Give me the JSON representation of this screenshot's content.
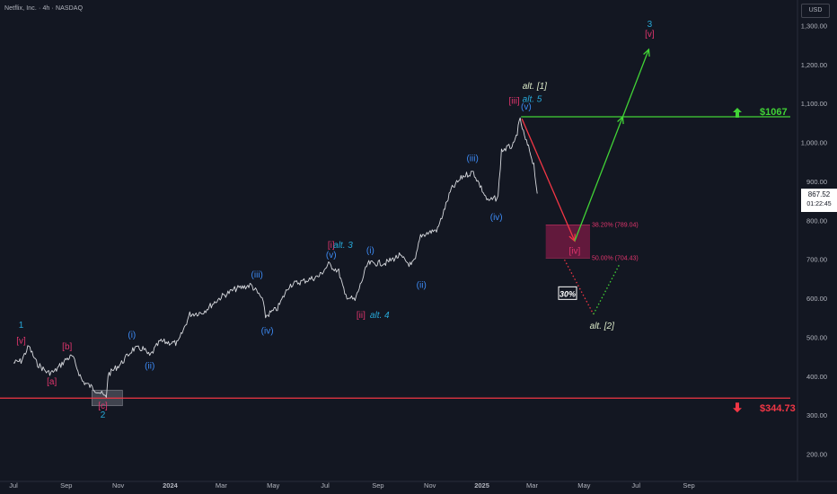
{
  "header": {
    "title": "Netflix, Inc. · 4h · NASDAQ",
    "currency": "USD"
  },
  "last_price": {
    "value": "867.52",
    "countdown": "01:22:45"
  },
  "colors": {
    "background": "#131722",
    "price": "#d7d9de",
    "green": "#41d336",
    "red": "#f23645",
    "magenta": "#e0356d",
    "blue": "#3d8bf5",
    "cyan": "#27a8d8",
    "light": "#dbe9c8",
    "zone": "#7e1b45"
  },
  "chart_data": {
    "type": "line",
    "title": "",
    "xlabel": "",
    "ylabel": "",
    "ylim": [
      190,
      1340
    ],
    "x_ticks": [
      "Jul",
      "Sep",
      "Nov",
      "2024",
      "Mar",
      "May",
      "Jul",
      "Sep",
      "Nov",
      "2025",
      "Mar",
      "May",
      "Jul",
      "Sep"
    ],
    "y_ticks": [
      "1,300.00",
      "1,200.00",
      "1,100.00",
      "1,000.00",
      "900.00",
      "800.00",
      "700.00",
      "600.00",
      "500.00",
      "400.00",
      "300.00",
      "200.00"
    ],
    "y_tick_values": [
      1300,
      1200,
      1100,
      1000,
      900,
      800,
      700,
      600,
      500,
      400,
      300,
      200
    ],
    "price_series": [
      {
        "x": "2023-07-01",
        "y": 435
      },
      {
        "x": "2023-07-10",
        "y": 440
      },
      {
        "x": "2023-07-19",
        "y": 478
      },
      {
        "x": "2023-07-28",
        "y": 435
      },
      {
        "x": "2023-08-10",
        "y": 410
      },
      {
        "x": "2023-08-18",
        "y": 412
      },
      {
        "x": "2023-09-01",
        "y": 445
      },
      {
        "x": "2023-09-08",
        "y": 452
      },
      {
        "x": "2023-09-20",
        "y": 388
      },
      {
        "x": "2023-10-10",
        "y": 360
      },
      {
        "x": "2023-10-18",
        "y": 345
      },
      {
        "x": "2023-10-20",
        "y": 405
      },
      {
        "x": "2023-11-05",
        "y": 435
      },
      {
        "x": "2023-11-18",
        "y": 470
      },
      {
        "x": "2023-11-30",
        "y": 472
      },
      {
        "x": "2023-12-08",
        "y": 452
      },
      {
        "x": "2023-12-20",
        "y": 490
      },
      {
        "x": "2024-01-10",
        "y": 485
      },
      {
        "x": "2024-01-24",
        "y": 560
      },
      {
        "x": "2024-02-08",
        "y": 565
      },
      {
        "x": "2024-03-01",
        "y": 605
      },
      {
        "x": "2024-03-18",
        "y": 625
      },
      {
        "x": "2024-04-05",
        "y": 635
      },
      {
        "x": "2024-04-18",
        "y": 600
      },
      {
        "x": "2024-04-22",
        "y": 555
      },
      {
        "x": "2024-05-06",
        "y": 575
      },
      {
        "x": "2024-05-20",
        "y": 635
      },
      {
        "x": "2024-06-10",
        "y": 648
      },
      {
        "x": "2024-06-24",
        "y": 658
      },
      {
        "x": "2024-07-05",
        "y": 688
      },
      {
        "x": "2024-07-17",
        "y": 670
      },
      {
        "x": "2024-07-24",
        "y": 610
      },
      {
        "x": "2024-08-05",
        "y": 595
      },
      {
        "x": "2024-08-20",
        "y": 690
      },
      {
        "x": "2024-09-10",
        "y": 692
      },
      {
        "x": "2024-09-26",
        "y": 710
      },
      {
        "x": "2024-10-10",
        "y": 685
      },
      {
        "x": "2024-10-15",
        "y": 700
      },
      {
        "x": "2024-10-21",
        "y": 762
      },
      {
        "x": "2024-11-10",
        "y": 778
      },
      {
        "x": "2024-11-26",
        "y": 880
      },
      {
        "x": "2024-12-10",
        "y": 915
      },
      {
        "x": "2024-12-22",
        "y": 925
      },
      {
        "x": "2025-01-08",
        "y": 850
      },
      {
        "x": "2025-01-20",
        "y": 860
      },
      {
        "x": "2025-01-24",
        "y": 980
      },
      {
        "x": "2025-02-08",
        "y": 995
      },
      {
        "x": "2025-02-15",
        "y": 1060
      },
      {
        "x": "2025-02-20",
        "y": 1015
      },
      {
        "x": "2025-02-26",
        "y": 980
      },
      {
        "x": "2025-03-03",
        "y": 945
      },
      {
        "x": "2025-03-07",
        "y": 870
      }
    ],
    "levels": [
      {
        "label": "$1067",
        "value": 1067,
        "color": "#41d336",
        "arrow": "up"
      },
      {
        "label": "$344.73",
        "value": 344.73,
        "color": "#f23645",
        "arrow": "down"
      }
    ],
    "fib_zone": {
      "top": 789.04,
      "bottom": 704.43,
      "labels": [
        "38.20% (789.04)",
        "50.00% (704.43)"
      ]
    },
    "projections": [
      {
        "name": "drop",
        "style": "solid",
        "color": "#f23645",
        "points": [
          {
            "x": "2025-02-17",
            "y": 1062
          },
          {
            "x": "2025-04-20",
            "y": 748
          }
        ]
      },
      {
        "name": "rally",
        "style": "solid",
        "color": "#41d336",
        "points": [
          {
            "x": "2025-04-20",
            "y": 748
          },
          {
            "x": "2025-07-16",
            "y": 1240
          }
        ]
      },
      {
        "name": "alt-drop",
        "style": "dotted",
        "color": "#f23645",
        "points": [
          {
            "x": "2025-04-08",
            "y": 700
          },
          {
            "x": "2025-05-12",
            "y": 560
          }
        ]
      },
      {
        "name": "alt-rally",
        "style": "dotted",
        "color": "#41d336",
        "points": [
          {
            "x": "2025-05-12",
            "y": 560
          },
          {
            "x": "2025-06-12",
            "y": 690
          }
        ]
      }
    ],
    "probability_badge": "30%",
    "wave_labels": [
      {
        "text": "1",
        "color": "#27a8d8",
        "x": "2023-07-10",
        "y": 525
      },
      {
        "text": "[v]",
        "color": "#e0356d",
        "x": "2023-07-10",
        "y": 485
      },
      {
        "text": "[b]",
        "color": "#e0356d",
        "x": "2023-09-02",
        "y": 470
      },
      {
        "text": "[a]",
        "color": "#e0356d",
        "x": "2023-08-15",
        "y": 380
      },
      {
        "text": "[c]",
        "color": "#e0356d",
        "x": "2023-10-14",
        "y": 318
      },
      {
        "text": "2",
        "color": "#27a8d8",
        "x": "2023-10-14",
        "y": 294
      },
      {
        "text": "(i)",
        "color": "#3d8bf5",
        "x": "2023-11-17",
        "y": 500
      },
      {
        "text": "(ii)",
        "color": "#3d8bf5",
        "x": "2023-12-08",
        "y": 420
      },
      {
        "text": "(iii)",
        "color": "#3d8bf5",
        "x": "2024-04-12",
        "y": 654
      },
      {
        "text": "(iv)",
        "color": "#3d8bf5",
        "x": "2024-04-24",
        "y": 510
      },
      {
        "text": "[i]",
        "color": "#e0356d",
        "x": "2024-07-08",
        "y": 730
      },
      {
        "text": "alt. 3",
        "color": "#27a8d8",
        "x": "2024-07-22",
        "y": 730
      },
      {
        "text": "(v)",
        "color": "#3d8bf5",
        "x": "2024-07-08",
        "y": 705
      },
      {
        "text": "[ii]",
        "color": "#e0356d",
        "x": "2024-08-12",
        "y": 550
      },
      {
        "text": "alt. 4",
        "color": "#27a8d8",
        "x": "2024-09-03",
        "y": 550
      },
      {
        "text": "(i)",
        "color": "#3d8bf5",
        "x": "2024-08-23",
        "y": 717
      },
      {
        "text": "(ii)",
        "color": "#3d8bf5",
        "x": "2024-10-22",
        "y": 628
      },
      {
        "text": "(iii)",
        "color": "#3d8bf5",
        "x": "2024-12-21",
        "y": 953
      },
      {
        "text": "(iv)",
        "color": "#3d8bf5",
        "x": "2025-01-18",
        "y": 802
      },
      {
        "text": "[iii]",
        "color": "#e0356d",
        "x": "2025-02-08",
        "y": 1100
      },
      {
        "text": "alt. 5",
        "color": "#27a8d8",
        "x": "2025-03-01",
        "y": 1105
      },
      {
        "text": "alt. [1]",
        "color": "#dbe9c8",
        "x": "2025-03-04",
        "y": 1138
      },
      {
        "text": "(v)",
        "color": "#3d8bf5",
        "x": "2025-02-22",
        "y": 1086
      },
      {
        "text": "3",
        "color": "#27a8d8",
        "x": "2025-07-17",
        "y": 1298
      },
      {
        "text": "[v]",
        "color": "#e0356d",
        "x": "2025-07-17",
        "y": 1272
      },
      {
        "text": "[iv]",
        "color": "#e0356d",
        "x": "2025-04-20",
        "y": 715
      },
      {
        "text": "alt. [2]",
        "color": "#dbe9c8",
        "x": "2025-05-22",
        "y": 523
      }
    ]
  }
}
